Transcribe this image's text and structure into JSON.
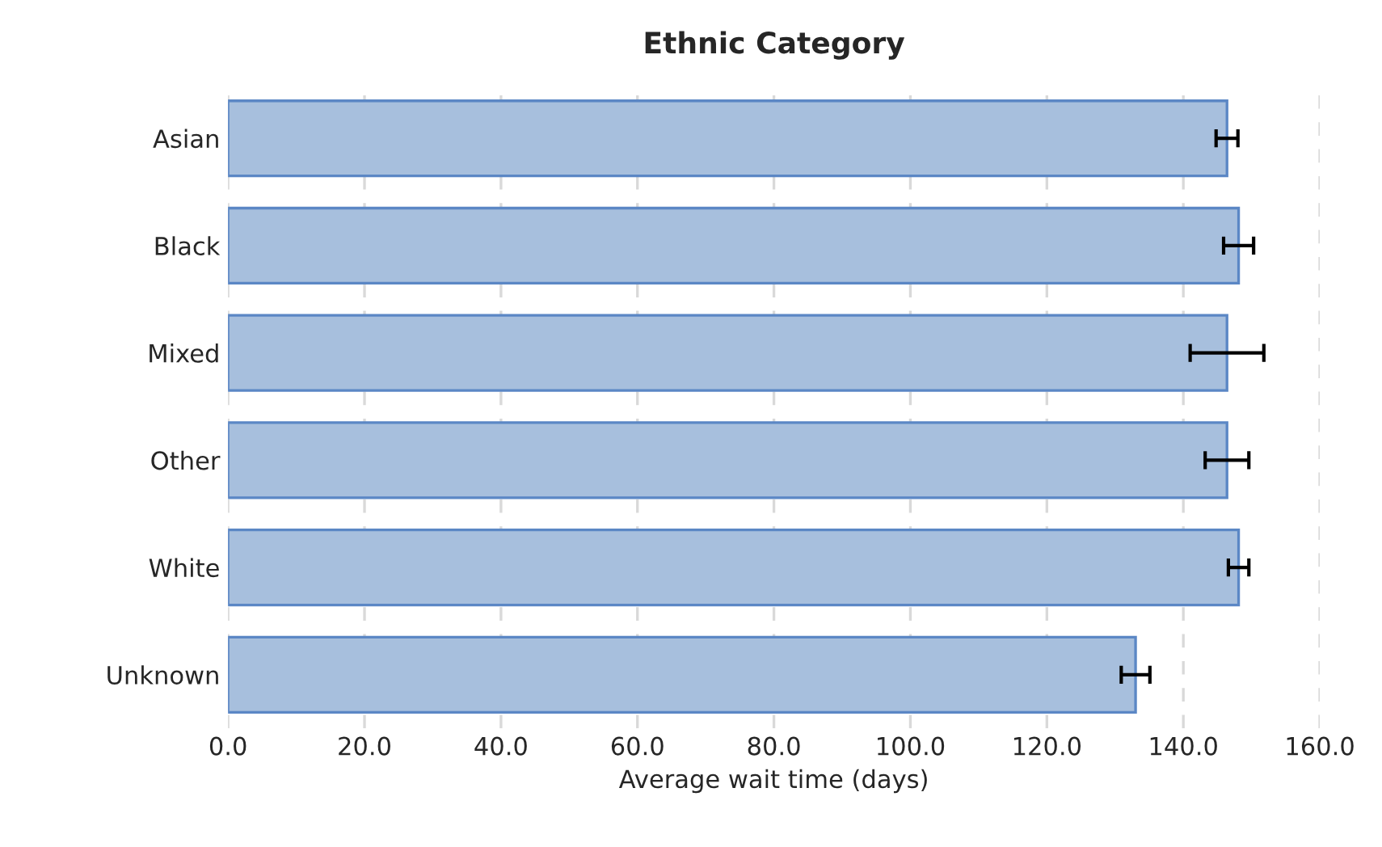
{
  "chart_data": {
    "type": "bar",
    "orientation": "horizontal",
    "title": "Ethnic Category",
    "xlabel": "Average wait time (days)",
    "categories": [
      "Asian",
      "Black",
      "Mixed",
      "Other",
      "White",
      "Unknown"
    ],
    "values": [
      146.4,
      148.1,
      146.4,
      146.4,
      148.1,
      133.0
    ],
    "errors": [
      1.6,
      2.2,
      5.4,
      3.2,
      1.5,
      2.1
    ],
    "color": "#a7bfdd",
    "xlim": [
      0,
      160
    ],
    "xticks": [
      {
        "value": 0,
        "label": "0.0"
      },
      {
        "value": 20,
        "label": "20.0"
      },
      {
        "value": 40,
        "label": "40.0"
      },
      {
        "value": 60,
        "label": "60.0"
      },
      {
        "value": 80,
        "label": "80.0"
      },
      {
        "value": 100,
        "label": "100.0"
      },
      {
        "value": 120,
        "label": "120.0"
      },
      {
        "value": 140,
        "label": "140.0"
      },
      {
        "value": 160,
        "label": "160.0"
      }
    ],
    "grid": "x"
  }
}
